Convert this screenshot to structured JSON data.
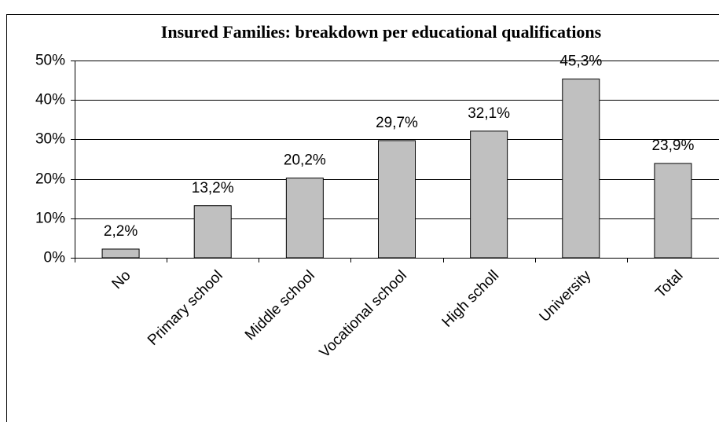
{
  "chart_data": {
    "type": "bar",
    "title": "Insured Families: breakdown per educational qualifications",
    "categories": [
      "No",
      "Primary school",
      "Middle school",
      "Vocational school",
      "High scholl",
      "University",
      "Total"
    ],
    "values": [
      2.2,
      13.2,
      20.2,
      29.7,
      32.1,
      45.3,
      23.9
    ],
    "value_labels": [
      "2,2%",
      "13,2%",
      "20,2%",
      "29,7%",
      "32,1%",
      "45,3%",
      "23,9%"
    ],
    "color": "#c0c0c0",
    "ylim": [
      0,
      50
    ],
    "yticks": [
      {
        "value": 0,
        "label": "0%"
      },
      {
        "value": 10,
        "label": "10%"
      },
      {
        "value": 20,
        "label": "20%"
      },
      {
        "value": 30,
        "label": "30%"
      },
      {
        "value": 40,
        "label": "40%"
      },
      {
        "value": 50,
        "label": "50%"
      }
    ],
    "grid": true
  }
}
